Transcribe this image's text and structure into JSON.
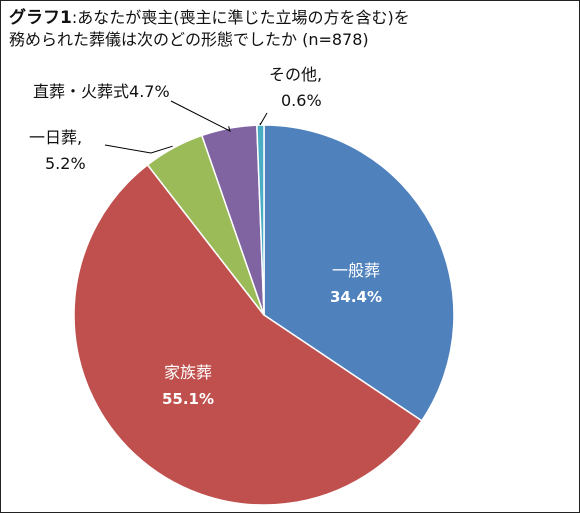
{
  "chart_data": {
    "type": "pie",
    "title_lead": "グラフ1",
    "title_line1": ":あなたが喪主(喪主に準じた立場の方を含む)を",
    "title_line2": "務められた葬儀は次のどの形態でしたか (n=878)",
    "slices": [
      {
        "label": "一般葬",
        "value": 34.4,
        "value_label": "34.4%",
        "color": "#4f81bd"
      },
      {
        "label": "家族葬",
        "value": 55.1,
        "value_label": "55.1%",
        "color": "#c0504d"
      },
      {
        "label": "一日葬,",
        "value": 5.2,
        "value_label": "5.2%",
        "color": "#9bbb59"
      },
      {
        "label": "直葬・火葬式",
        "value": 4.7,
        "value_label": "4.7%",
        "color": "#8064a2"
      },
      {
        "label": "その他,",
        "value": 0.6,
        "value_label": "0.6%",
        "color": "#4bacc6"
      }
    ],
    "legend": "none"
  }
}
